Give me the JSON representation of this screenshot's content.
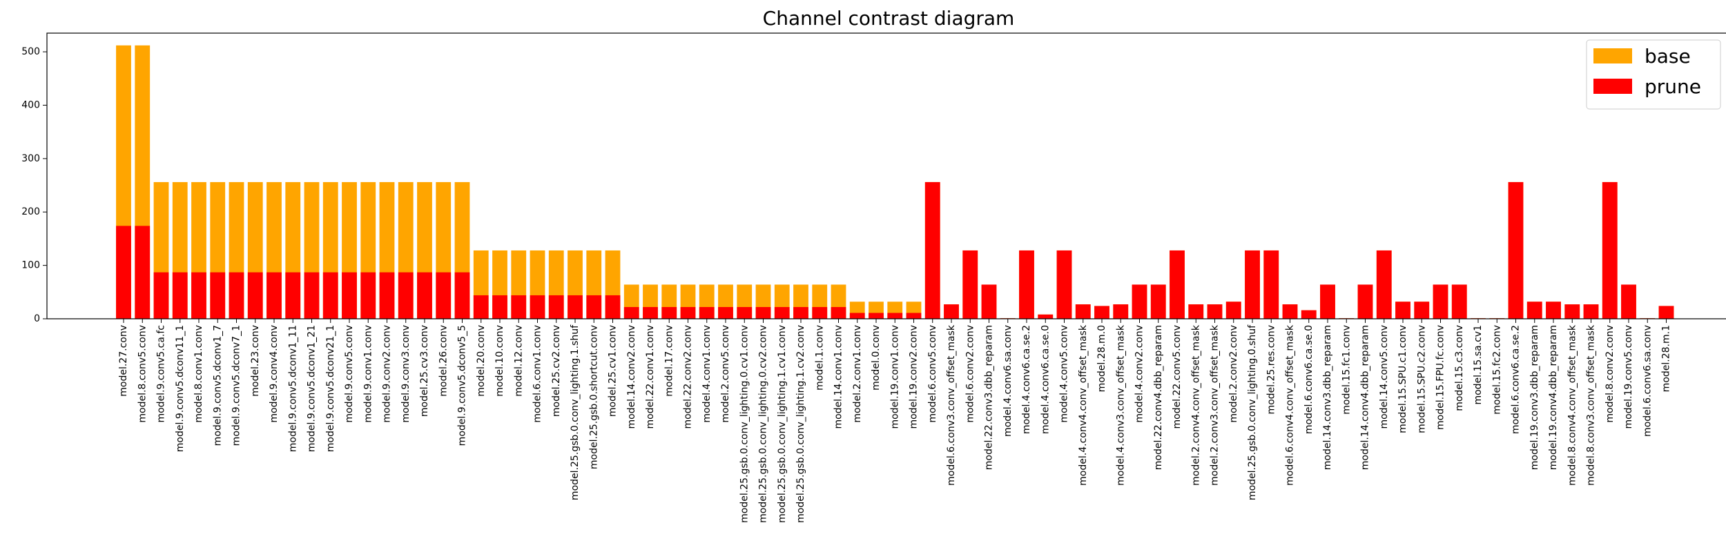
{
  "chart_data": {
    "type": "bar",
    "title": "Channel contrast diagram",
    "xlabel": "",
    "ylabel": "",
    "ylim": [
      0,
      535
    ],
    "yticks": [
      0,
      100,
      200,
      300,
      400,
      500
    ],
    "legend_placement": "top-right",
    "grid": false,
    "colors": {
      "base": "#FFA500",
      "prune": "#FF0000"
    },
    "categories": [
      "model.27.conv",
      "model.8.conv5.conv",
      "model.9.conv5.ca.fc",
      "model.9.conv5.dconv11_1",
      "model.8.conv1.conv",
      "model.9.conv5.dconv1_7",
      "model.9.conv5.dconv7_1",
      "model.23.conv",
      "model.9.conv4.conv",
      "model.9.conv5.dconv1_11",
      "model.9.conv5.dconv1_21",
      "model.9.conv5.dconv21_1",
      "model.9.conv5.conv",
      "model.9.conv1.conv",
      "model.9.conv2.conv",
      "model.9.conv3.conv",
      "model.25.cv3.conv",
      "model.26.conv",
      "model.9.conv5.dconv5_5",
      "model.20.conv",
      "model.10.conv",
      "model.12.conv",
      "model.6.conv1.conv",
      "model.25.cv2.conv",
      "model.25.gsb.0.conv_lighting.1.shuf",
      "model.25.gsb.0.shortcut.conv",
      "model.25.cv1.conv",
      "model.14.conv2.conv",
      "model.22.conv1.conv",
      "model.17.conv",
      "model.22.conv2.conv",
      "model.4.conv1.conv",
      "model.2.conv5.conv",
      "model.25.gsb.0.conv_lighting.0.cv1.conv",
      "model.25.gsb.0.conv_lighting.0.cv2.conv",
      "model.25.gsb.0.conv_lighting.1.cv1.conv",
      "model.25.gsb.0.conv_lighting.1.cv2.conv",
      "model.1.conv",
      "model.14.conv1.conv",
      "model.2.conv1.conv",
      "model.0.conv",
      "model.19.conv1.conv",
      "model.19.conv2.conv",
      "model.6.conv5.conv",
      "model.6.conv3.conv_offset_mask",
      "model.6.conv2.conv",
      "model.22.conv3.dbb_reparam",
      "model.4.conv6.sa.conv",
      "model.4.conv6.ca.se.2",
      "model.4.conv6.ca.se.0",
      "model.4.conv5.conv",
      "model.4.conv4.conv_offset_mask",
      "model.28.m.0",
      "model.4.conv3.conv_offset_mask",
      "model.4.conv2.conv",
      "model.22.conv4.dbb_reparam",
      "model.22.conv5.conv",
      "model.2.conv4.conv_offset_mask",
      "model.2.conv3.conv_offset_mask",
      "model.2.conv2.conv",
      "model.25.gsb.0.conv_lighting.0.shuf",
      "model.25.res.conv",
      "model.6.conv4.conv_offset_mask",
      "model.6.conv6.ca.se.0",
      "model.14.conv3.dbb_reparam",
      "model.15.fc1.conv",
      "model.14.conv4.dbb_reparam",
      "model.14.conv5.conv",
      "model.15.SPU.c1.conv",
      "model.15.SPU.c2.conv",
      "model.15.FPU.fc.conv",
      "model.15.c3.conv",
      "model.15.sa.cv1",
      "model.15.fc2.conv",
      "model.6.conv6.ca.se.2",
      "model.19.conv3.dbb_reparam",
      "model.19.conv4.dbb_reparam",
      "model.8.conv4.conv_offset_mask",
      "model.8.conv3.conv_offset_mask",
      "model.8.conv2.conv",
      "model.19.conv5.conv",
      "model.6.conv6.sa.conv",
      "model.28.m.1"
    ],
    "series": [
      {
        "name": "base",
        "values": [
          512,
          512,
          256,
          256,
          256,
          256,
          256,
          256,
          256,
          256,
          256,
          256,
          256,
          256,
          256,
          256,
          256,
          256,
          256,
          128,
          128,
          128,
          128,
          128,
          128,
          128,
          128,
          64,
          64,
          64,
          64,
          64,
          64,
          64,
          64,
          64,
          64,
          64,
          64,
          32,
          32,
          32,
          32,
          256,
          27,
          128,
          64,
          1,
          128,
          8,
          128,
          27,
          24,
          27,
          64,
          64,
          128,
          27,
          27,
          32,
          128,
          128,
          27,
          16,
          64,
          1,
          64,
          128,
          32,
          32,
          64,
          64,
          1,
          1,
          256,
          32,
          32,
          27,
          27,
          256,
          64,
          1,
          24
        ]
      },
      {
        "name": "prune",
        "values": [
          174,
          174,
          87,
          87,
          87,
          87,
          87,
          87,
          87,
          87,
          87,
          87,
          87,
          87,
          87,
          87,
          87,
          87,
          87,
          44,
          44,
          44,
          44,
          44,
          44,
          44,
          44,
          22,
          22,
          22,
          22,
          22,
          22,
          22,
          22,
          22,
          22,
          22,
          22,
          11,
          11,
          11,
          11,
          256,
          27,
          128,
          64,
          1,
          128,
          8,
          128,
          27,
          24,
          27,
          64,
          64,
          128,
          27,
          27,
          32,
          128,
          128,
          27,
          16,
          64,
          1,
          64,
          128,
          32,
          32,
          64,
          64,
          1,
          1,
          256,
          32,
          32,
          27,
          27,
          256,
          64,
          1,
          24
        ]
      }
    ]
  }
}
